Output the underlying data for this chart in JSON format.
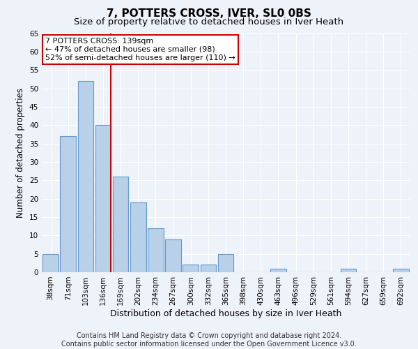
{
  "title": "7, POTTERS CROSS, IVER, SL0 0BS",
  "subtitle": "Size of property relative to detached houses in Iver Heath",
  "xlabel": "Distribution of detached houses by size in Iver Heath",
  "ylabel": "Number of detached properties",
  "categories": [
    "38sqm",
    "71sqm",
    "103sqm",
    "136sqm",
    "169sqm",
    "202sqm",
    "234sqm",
    "267sqm",
    "300sqm",
    "332sqm",
    "365sqm",
    "398sqm",
    "430sqm",
    "463sqm",
    "496sqm",
    "529sqm",
    "561sqm",
    "594sqm",
    "627sqm",
    "659sqm",
    "692sqm"
  ],
  "values": [
    5,
    37,
    52,
    40,
    26,
    19,
    12,
    9,
    2,
    2,
    5,
    0,
    0,
    1,
    0,
    0,
    0,
    1,
    0,
    0,
    1
  ],
  "bar_color": "#b8d0e8",
  "bar_edge_color": "#6699cc",
  "highlight_line_index": 3,
  "highlight_line_color": "#cc0000",
  "annotation_text": "7 POTTERS CROSS: 139sqm\n← 47% of detached houses are smaller (98)\n52% of semi-detached houses are larger (110) →",
  "annotation_box_facecolor": "#ffffff",
  "annotation_box_edgecolor": "#cc0000",
  "ylim": [
    0,
    65
  ],
  "yticks": [
    0,
    5,
    10,
    15,
    20,
    25,
    30,
    35,
    40,
    45,
    50,
    55,
    60,
    65
  ],
  "footer_line1": "Contains HM Land Registry data © Crown copyright and database right 2024.",
  "footer_line2": "Contains public sector information licensed under the Open Government Licence v3.0.",
  "background_color": "#eef2f9",
  "grid_color": "#ffffff",
  "title_fontsize": 11,
  "subtitle_fontsize": 9.5,
  "xlabel_fontsize": 9,
  "ylabel_fontsize": 8.5,
  "tick_fontsize": 7.5,
  "annotation_fontsize": 8,
  "footer_fontsize": 7
}
